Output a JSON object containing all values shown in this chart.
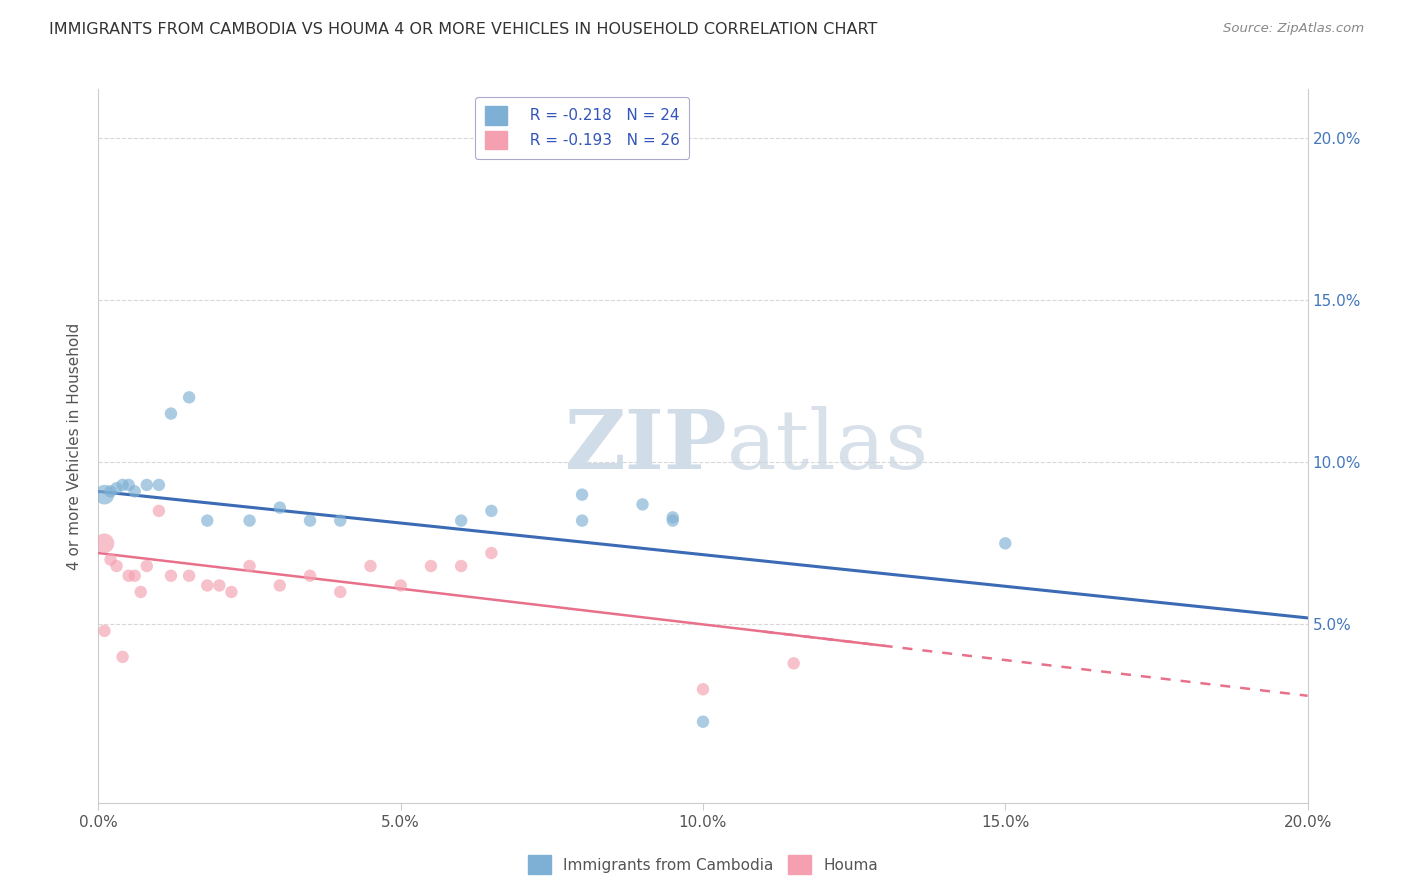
{
  "title": "IMMIGRANTS FROM CAMBODIA VS HOUMA 4 OR MORE VEHICLES IN HOUSEHOLD CORRELATION CHART",
  "source": "Source: ZipAtlas.com",
  "ylabel": "4 or more Vehicles in Household",
  "xlim": [
    0.0,
    0.2
  ],
  "ylim": [
    -0.005,
    0.215
  ],
  "xticks": [
    0.0,
    0.05,
    0.1,
    0.15,
    0.2
  ],
  "yticks": [
    0.0,
    0.05,
    0.1,
    0.15,
    0.2
  ],
  "xticklabels": [
    "0.0%",
    "5.0%",
    "10.0%",
    "15.0%",
    "20.0%"
  ],
  "right_yticklabels": [
    "",
    "5.0%",
    "10.0%",
    "15.0%",
    "20.0%"
  ],
  "legend_blue_r": "R = -0.218",
  "legend_blue_n": "N = 24",
  "legend_pink_r": "R = -0.193",
  "legend_pink_n": "N = 26",
  "blue_color": "#7EB0D5",
  "pink_color": "#F4A0B0",
  "blue_line_color": "#3B6BB5",
  "pink_line_color": "#E8708A",
  "watermark_zip": "ZIP",
  "watermark_atlas": "atlas",
  "blue_line_start_y": 0.091,
  "blue_line_end_y": 0.052,
  "pink_line_start_y": 0.072,
  "pink_line_end_y": 0.028,
  "blue_scatter_x": [
    0.001,
    0.002,
    0.003,
    0.004,
    0.005,
    0.006,
    0.008,
    0.01,
    0.012,
    0.015,
    0.018,
    0.025,
    0.03,
    0.035,
    0.04,
    0.06,
    0.065,
    0.08,
    0.09,
    0.095,
    0.1,
    0.15,
    0.08,
    0.095
  ],
  "blue_scatter_y": [
    0.09,
    0.091,
    0.092,
    0.093,
    0.093,
    0.091,
    0.093,
    0.093,
    0.115,
    0.12,
    0.082,
    0.082,
    0.086,
    0.082,
    0.082,
    0.082,
    0.085,
    0.09,
    0.087,
    0.083,
    0.02,
    0.075,
    0.082,
    0.082
  ],
  "blue_scatter_sizes": [
    200,
    80,
    80,
    80,
    80,
    80,
    80,
    80,
    80,
    80,
    80,
    80,
    80,
    80,
    80,
    80,
    80,
    80,
    80,
    80,
    80,
    80,
    80,
    80
  ],
  "pink_scatter_x": [
    0.001,
    0.002,
    0.003,
    0.004,
    0.005,
    0.006,
    0.007,
    0.008,
    0.01,
    0.012,
    0.015,
    0.018,
    0.02,
    0.022,
    0.025,
    0.03,
    0.035,
    0.04,
    0.045,
    0.05,
    0.055,
    0.06,
    0.065,
    0.1,
    0.115,
    0.001
  ],
  "pink_scatter_y": [
    0.075,
    0.07,
    0.068,
    0.04,
    0.065,
    0.065,
    0.06,
    0.068,
    0.085,
    0.065,
    0.065,
    0.062,
    0.062,
    0.06,
    0.068,
    0.062,
    0.065,
    0.06,
    0.068,
    0.062,
    0.068,
    0.068,
    0.072,
    0.03,
    0.038,
    0.048
  ],
  "pink_scatter_sizes": [
    200,
    80,
    80,
    80,
    80,
    80,
    80,
    80,
    80,
    80,
    80,
    80,
    80,
    80,
    80,
    80,
    80,
    80,
    80,
    80,
    80,
    80,
    80,
    80,
    80,
    80
  ]
}
